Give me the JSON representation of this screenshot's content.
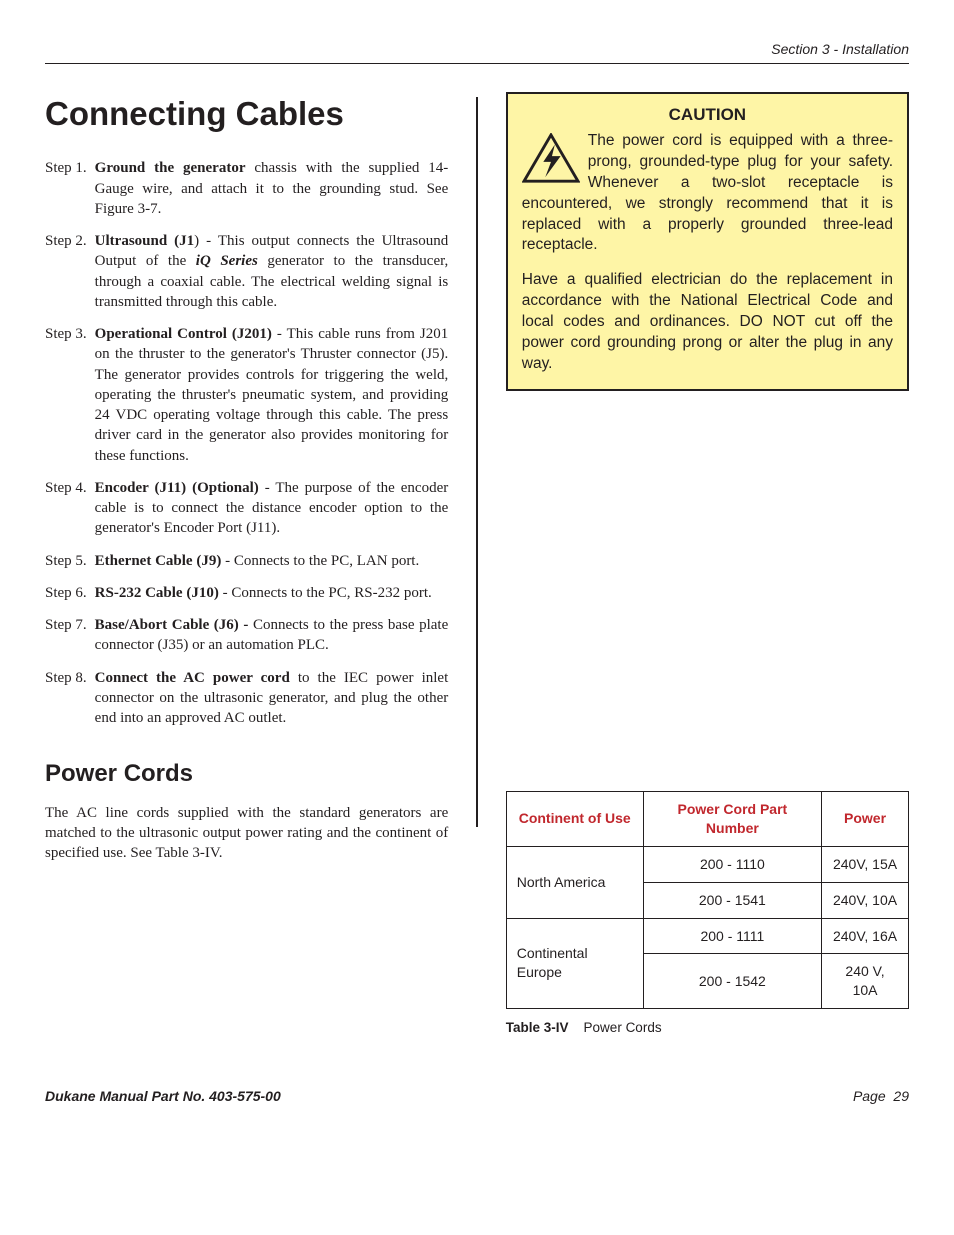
{
  "header": {
    "section": "Section 3 - Installation"
  },
  "h1": "Connecting Cables",
  "steps": [
    {
      "n": "Step 1.",
      "lead": "Ground the generator",
      "rest": " chassis with the supplied 14-Gauge wire, and attach it to the grounding stud. See Figure 3-7."
    },
    {
      "n": "Step 2.",
      "lead": "Ultrasound (J1",
      "after": ")",
      "rest_before_em": " - This output connects the Ultrasound Output of the ",
      "em": "iQ Series",
      "rest_after_em": " generator to the transducer, through a coaxial cable. The electrical welding signal is transmitted through this cable."
    },
    {
      "n": "Step 3.",
      "lead": "Operational Control (J201)",
      "rest": " - This cable runs from J201 on the thruster to the generator's Thruster connector (J5). The generator provides controls for triggering the weld, operating the thruster's pneumatic system, and providing 24 VDC operating voltage through this cable. The press driver card in the generator also provides monitoring for these functions."
    },
    {
      "n": "Step 4.",
      "lead": "Encoder (J11) (Optional)",
      "rest": " - The purpose of the encoder cable is to connect the distance encoder option to the generator's Encoder Port (J11)."
    },
    {
      "n": "Step 5.",
      "lead": "Ethernet Cable (J9)",
      "rest": " - Connects to the PC, LAN port."
    },
    {
      "n": "Step 6.",
      "lead": "RS-232 Cable (J10)",
      "rest": " - Connects to the PC, RS-232 port."
    },
    {
      "n": "Step 7.",
      "lead": "Base/Abort Cable (J6) -",
      "rest": " Connects to the press base plate connector (J35) or an automation PLC."
    },
    {
      "n": "Step 8.",
      "lead": "Connect the AC power cord",
      "rest": " to the IEC power inlet connector on the ultrasonic generator, and plug the other end into an approved AC outlet."
    }
  ],
  "h2": "Power Cords",
  "pc_intro": "The AC line cords supplied with the standard generators are matched to the ultrasonic output power rating and the continent of specified use. See Table 3-IV.",
  "caution": {
    "title": "CAUTION",
    "p1": "The power cord is equipped with a three-prong, grounded-type plug for your safety. Whenever a two-slot receptacle is encountered, we strongly recommend that it is replaced with a properly grounded three-lead receptacle.",
    "p2": "Have a qualified electrician do the replacement in accordance with the National Electrical Code and local codes and ordinances. DO NOT cut off the power cord grounding prong or alter the plug in any way."
  },
  "table": {
    "headers": [
      "Continent of Use",
      "Power Cord Part Number",
      "Power"
    ],
    "rows": [
      {
        "continent": "North America",
        "span": 2,
        "cells": [
          [
            "200 - 1110",
            "240V, 15A"
          ],
          [
            "200 - 1541",
            "240V, 10A"
          ]
        ]
      },
      {
        "continent": "Continental Europe",
        "span": 2,
        "cells": [
          [
            "200 - 1111",
            "240V, 16A"
          ],
          [
            "200 - 1542",
            "240 V, 10A"
          ]
        ]
      }
    ],
    "caption_bold": "Table 3-IV",
    "caption_rest": "Power Cords"
  },
  "footer": {
    "left": "Dukane Manual Part No. 403-575-00",
    "right_label": "Page",
    "right_num": "29"
  },
  "colors": {
    "caution_bg": "#fef5a6",
    "header_red": "#c1272d"
  }
}
